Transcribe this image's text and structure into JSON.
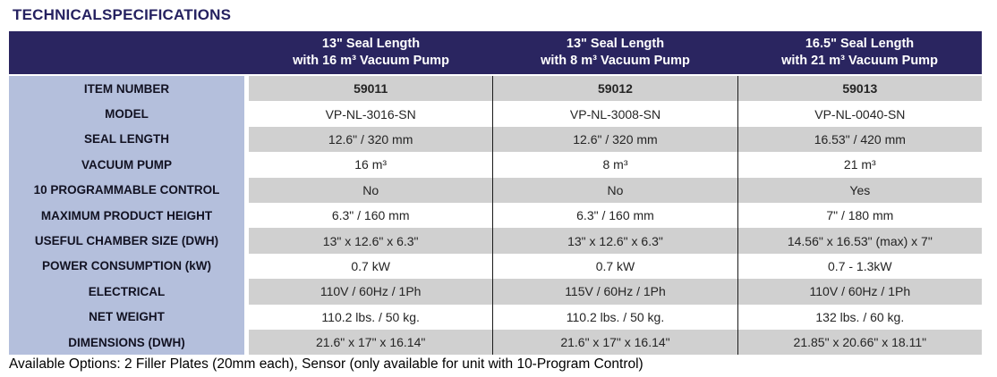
{
  "title": "TECHNICALSPECIFICATIONS",
  "table": {
    "header_columns": [
      {
        "line1": "13\" Seal Length",
        "line2": "with 16 m³ Vacuum Pump"
      },
      {
        "line1": "13\" Seal Length",
        "line2": "with 8 m³ Vacuum Pump"
      },
      {
        "line1": "16.5\" Seal Length",
        "line2": "with 21 m³ Vacuum Pump"
      }
    ],
    "rows": [
      {
        "label": "ITEM NUMBER",
        "values": [
          "59011",
          "59012",
          "59013"
        ]
      },
      {
        "label": "MODEL",
        "values": [
          "VP-NL-3016-SN",
          "VP-NL-3008-SN",
          "VP-NL-0040-SN"
        ]
      },
      {
        "label": "SEAL LENGTH",
        "values": [
          "12.6\" / 320 mm",
          "12.6\" / 320 mm",
          "16.53\" / 420 mm"
        ]
      },
      {
        "label": "VACUUM PUMP",
        "values": [
          "16 m³",
          "8 m³",
          "21 m³"
        ]
      },
      {
        "label": "10 PROGRAMMABLE CONTROL",
        "values": [
          "No",
          "No",
          "Yes"
        ]
      },
      {
        "label": "MAXIMUM PRODUCT HEIGHT",
        "values": [
          "6.3\" / 160 mm",
          "6.3\" / 160 mm",
          "7\" / 180 mm"
        ]
      },
      {
        "label": "USEFUL CHAMBER SIZE (DWH)",
        "values": [
          "13\" x 12.6\" x 6.3\"",
          "13\" x 12.6\" x 6.3\"",
          "14.56\" x 16.53\" (max) x 7\""
        ]
      },
      {
        "label": "POWER CONSUMPTION (kW)",
        "values": [
          "0.7 kW",
          "0.7 kW",
          "0.7 - 1.3kW"
        ]
      },
      {
        "label": "ELECTRICAL",
        "values": [
          "110V / 60Hz / 1Ph",
          "115V / 60Hz / 1Ph",
          "110V / 60Hz / 1Ph"
        ]
      },
      {
        "label": "NET WEIGHT",
        "values": [
          "110.2 lbs. / 50 kg.",
          "110.2 lbs. / 50 kg.",
          "132 lbs. / 60 kg."
        ]
      },
      {
        "label": "DIMENSIONS (DWH)",
        "values": [
          "21.6\" x 17\" x 16.14\"",
          "21.6\" x 17\" x 16.14\"",
          "21.85\" x 20.66\" x 18.11\""
        ]
      }
    ]
  },
  "footer_note": "Available Options: 2 Filler Plates (20mm each), Sensor (only available for unit with 10-Program Control)",
  "colors": {
    "header_bg": "#2a2560",
    "label_column_bg": "#b4bfdc",
    "alt_row_bg": "#d0d0d0",
    "title_color": "#252160",
    "divider_color": "#1b1b1b"
  }
}
